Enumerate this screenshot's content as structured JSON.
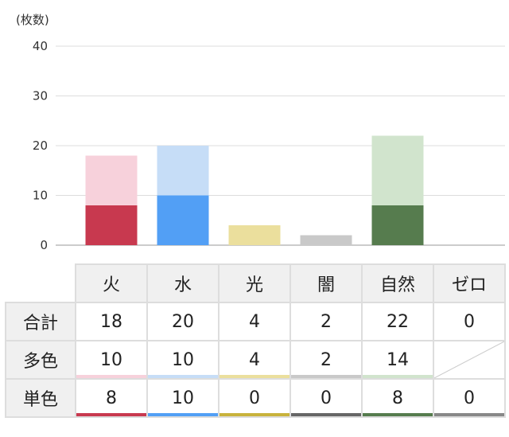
{
  "chart_data": {
    "type": "bar",
    "stacked": true,
    "ylabel": "(枚数)",
    "ylim": [
      0,
      40
    ],
    "yticks": [
      0,
      10,
      20,
      30,
      40
    ],
    "grid": true,
    "categories": [
      "火",
      "水",
      "光",
      "闇",
      "自然",
      "ゼロ"
    ],
    "series": [
      {
        "name": "単色",
        "values": [
          8,
          10,
          0,
          0,
          8,
          0
        ],
        "colors": [
          "#c8394f",
          "#529ff5",
          "#c8b23c",
          "#666666",
          "#567c4e",
          "#888888"
        ]
      },
      {
        "name": "多色",
        "values": [
          10,
          10,
          4,
          2,
          14,
          null
        ],
        "colors": [
          "#f7d1db",
          "#c6ddf7",
          "#ebdf9d",
          "#c9c9c9",
          "#d1e4cd",
          "#ffffff"
        ]
      }
    ]
  },
  "table": {
    "headers": [
      "火",
      "水",
      "光",
      "闇",
      "自然",
      "ゼロ"
    ],
    "rows": [
      {
        "label": "合計",
        "values": [
          "18",
          "20",
          "4",
          "2",
          "22",
          "0"
        ]
      },
      {
        "label": "多色",
        "values": [
          "10",
          "10",
          "4",
          "2",
          "14",
          ""
        ]
      },
      {
        "label": "単色",
        "values": [
          "8",
          "10",
          "0",
          "0",
          "8",
          "0"
        ]
      }
    ]
  }
}
